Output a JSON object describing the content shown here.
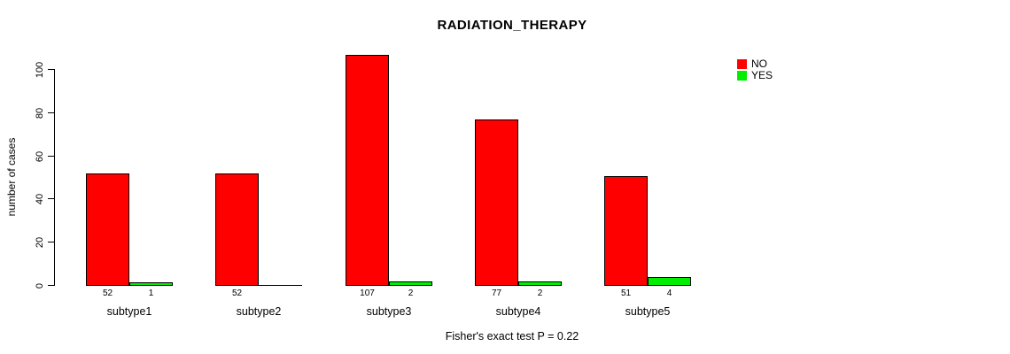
{
  "title": "RADIATION_THERAPY",
  "footer": "Fisher's exact test P = 0.22",
  "chart_data": {
    "type": "bar",
    "title": "RADIATION_THERAPY",
    "xlabel": "",
    "ylabel": "number of cases",
    "categories": [
      "subtype1",
      "subtype2",
      "subtype3",
      "subtype4",
      "subtype5"
    ],
    "series": [
      {
        "name": "NO",
        "color": "#ff0000",
        "values": [
          52,
          52,
          107,
          77,
          51
        ]
      },
      {
        "name": "YES",
        "color": "#00ee00",
        "values": [
          1,
          0,
          2,
          2,
          4
        ]
      }
    ],
    "bar_value_labels": [
      [
        "52",
        "1"
      ],
      [
        "52",
        ""
      ],
      [
        "107",
        "2"
      ],
      [
        "77",
        "2"
      ],
      [
        "51",
        "4"
      ]
    ],
    "ylim": [
      0,
      100
    ],
    "yticks": [
      0,
      20,
      40,
      60,
      80,
      100
    ],
    "grid": false,
    "legend_position": "top-right",
    "annotation": "Fisher's exact test P = 0.22"
  }
}
